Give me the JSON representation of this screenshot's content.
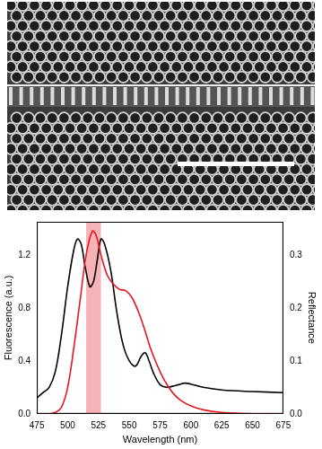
{
  "chart_data": {
    "type": "line",
    "xlabel": "Wavelength (nm)",
    "ylabel": "Fluorescence (a.u.)",
    "y2label": "Reflectance",
    "xlim": [
      475,
      675
    ],
    "xticks": [
      475,
      500,
      525,
      550,
      575,
      600,
      625,
      650,
      675
    ],
    "ylim": [
      0,
      1.45
    ],
    "yticks": [
      {
        "value": 0,
        "label": "0.0"
      },
      {
        "value": 0.4,
        "label": "0.4"
      },
      {
        "value": 0.8,
        "label": "0.8"
      },
      {
        "value": 1.2,
        "label": "1.2"
      }
    ],
    "y2lim": [
      0,
      0.3625
    ],
    "y2ticks": [
      {
        "value": 0,
        "label": "0.0"
      },
      0.1,
      0.2,
      0.3
    ],
    "highlight": {
      "x": [
        515,
        527
      ],
      "color": "#f4a0a6"
    },
    "series": [
      {
        "color": "#e8161e",
        "axis": "y",
        "x": [
          475,
          480,
          485,
          490,
          495,
          500,
          505,
          510,
          515,
          520,
          523,
          527,
          532,
          537,
          542,
          547,
          552,
          557,
          562,
          567,
          572,
          577,
          582,
          587,
          592,
          600,
          610,
          625,
          650,
          675
        ],
        "values": [
          0.0,
          0.0,
          0.0,
          0.01,
          0.05,
          0.2,
          0.5,
          0.85,
          1.2,
          1.38,
          1.35,
          1.2,
          1.05,
          0.98,
          0.94,
          0.93,
          0.88,
          0.78,
          0.65,
          0.5,
          0.38,
          0.28,
          0.2,
          0.14,
          0.1,
          0.06,
          0.03,
          0.01,
          0.0,
          0.0
        ]
      },
      {
        "color": "#000000",
        "axis": "y2",
        "x": [
          475,
          480,
          485,
          490,
          495,
          500,
          505,
          508,
          511,
          514,
          518,
          521,
          524,
          527,
          530,
          535,
          540,
          545,
          550,
          555,
          560,
          563,
          566,
          570,
          575,
          580,
          585,
          590,
          595,
          600,
          610,
          625,
          650,
          675
        ],
        "values": [
          0.03,
          0.04,
          0.05,
          0.08,
          0.15,
          0.24,
          0.31,
          0.33,
          0.32,
          0.28,
          0.24,
          0.25,
          0.29,
          0.33,
          0.32,
          0.27,
          0.19,
          0.13,
          0.1,
          0.09,
          0.11,
          0.115,
          0.1,
          0.075,
          0.055,
          0.05,
          0.052,
          0.055,
          0.058,
          0.056,
          0.05,
          0.045,
          0.042,
          0.04
        ]
      }
    ],
    "grid": false
  }
}
